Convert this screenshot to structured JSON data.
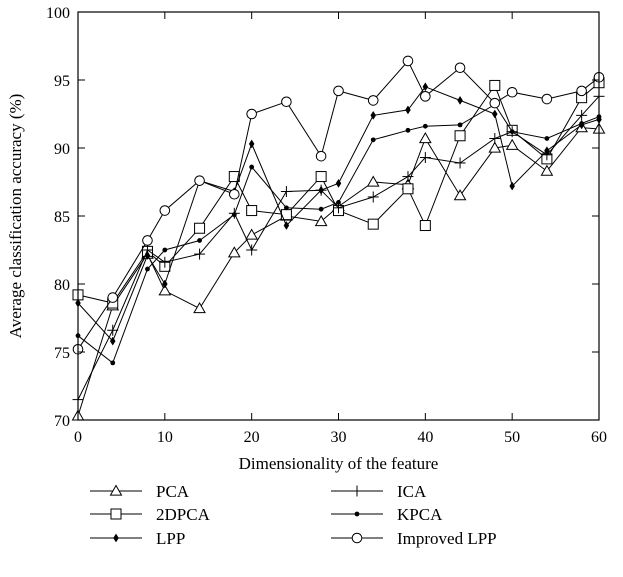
{
  "chart_data": {
    "type": "line",
    "title": "",
    "xlabel": "Dimensionality of the feature",
    "ylabel": "Average classification accuracy (%)",
    "xlim": [
      0,
      60
    ],
    "ylim": [
      70,
      100
    ],
    "xticks": [
      0,
      10,
      20,
      30,
      40,
      50,
      60
    ],
    "yticks": [
      70,
      75,
      80,
      85,
      90,
      95,
      100
    ],
    "grid": false,
    "legend_position": "bottom",
    "x": [
      0,
      4,
      8,
      10,
      14,
      18,
      20,
      24,
      28,
      30,
      34,
      38,
      40,
      44,
      48,
      50,
      54,
      58,
      60
    ],
    "series": [
      {
        "name": "PCA",
        "marker": "triangle",
        "values": [
          70.3,
          78.4,
          82.2,
          79.5,
          78.2,
          82.3,
          83.6,
          85.0,
          84.6,
          85.7,
          87.5,
          87.3,
          90.7,
          86.5,
          90.0,
          90.2,
          88.3,
          91.5,
          91.4
        ]
      },
      {
        "name": "2DPCA",
        "marker": "square",
        "values": [
          79.2,
          78.6,
          82.4,
          81.3,
          84.1,
          87.9,
          85.4,
          85.1,
          87.9,
          85.4,
          84.4,
          87.0,
          84.3,
          90.9,
          94.6,
          91.3,
          89.2,
          93.7,
          94.8
        ]
      },
      {
        "name": "LPP",
        "marker": "diamond",
        "values": [
          78.6,
          75.8,
          82.1,
          80.0,
          87.6,
          86.8,
          90.3,
          84.3,
          86.9,
          87.4,
          92.4,
          92.8,
          94.5,
          93.5,
          92.5,
          87.2,
          89.8,
          91.7,
          92.1
        ]
      },
      {
        "name": "ICA",
        "marker": "plus",
        "values": [
          71.5,
          76.6,
          82.5,
          81.6,
          82.2,
          85.2,
          82.5,
          86.8,
          86.9,
          85.6,
          86.4,
          87.9,
          89.3,
          88.9,
          90.7,
          91.2,
          89.5,
          92.4,
          93.8
        ]
      },
      {
        "name": "KPCA",
        "marker": "dot",
        "values": [
          76.2,
          74.2,
          81.1,
          82.5,
          83.2,
          85.1,
          88.6,
          85.6,
          85.5,
          86.0,
          90.6,
          91.3,
          91.6,
          91.7,
          93.2,
          91.2,
          90.7,
          91.8,
          92.3
        ]
      },
      {
        "name": "Improved LPP",
        "marker": "circle",
        "values": [
          75.2,
          79.0,
          83.2,
          85.4,
          87.6,
          86.6,
          92.5,
          93.4,
          89.4,
          94.2,
          93.5,
          96.4,
          93.8,
          95.9,
          93.3,
          94.1,
          93.6,
          94.2,
          95.2
        ]
      }
    ]
  }
}
